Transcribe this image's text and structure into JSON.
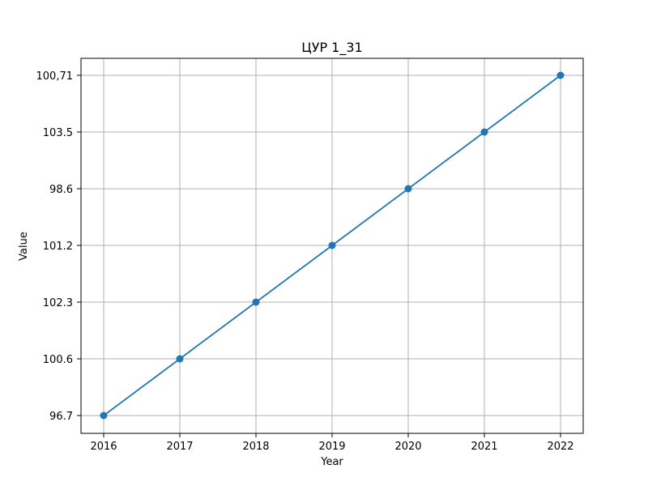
{
  "chart_data": {
    "type": "line",
    "title": "ЦУР 1_31",
    "xlabel": "Year",
    "ylabel": "Value",
    "x": [
      "2016",
      "2017",
      "2018",
      "2019",
      "2020",
      "2021",
      "2022"
    ],
    "y_categories": [
      "96.7",
      "100.6",
      "102.3",
      "101.2",
      "98.6",
      "103.5",
      "100,71"
    ],
    "series": [
      {
        "values": [
          "96.7",
          "100.6",
          "102.3",
          "101.2",
          "98.6",
          "103.5",
          "100,71"
        ],
        "color": "#1f77b4"
      }
    ],
    "grid": true,
    "y_axis_kind": "categorical"
  }
}
